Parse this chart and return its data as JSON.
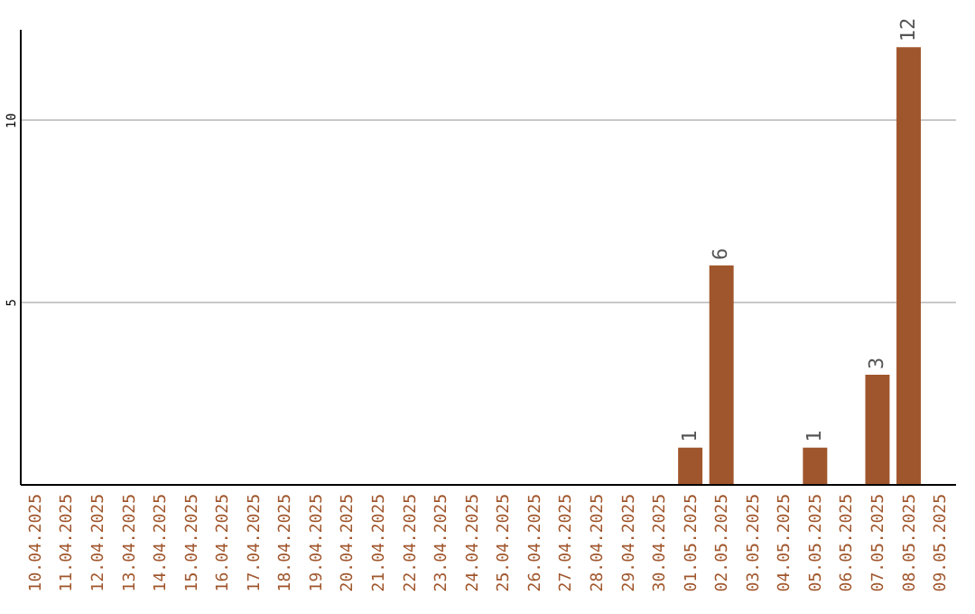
{
  "chart_data": {
    "type": "bar",
    "categories": [
      "10.04.2025",
      "11.04.2025",
      "12.04.2025",
      "13.04.2025",
      "14.04.2025",
      "15.04.2025",
      "16.04.2025",
      "17.04.2025",
      "18.04.2025",
      "19.04.2025",
      "20.04.2025",
      "21.04.2025",
      "22.04.2025",
      "23.04.2025",
      "24.04.2025",
      "25.04.2025",
      "26.04.2025",
      "27.04.2025",
      "28.04.2025",
      "29.04.2025",
      "30.04.2025",
      "01.05.2025",
      "02.05.2025",
      "03.05.2025",
      "04.05.2025",
      "05.05.2025",
      "06.05.2025",
      "07.05.2025",
      "08.05.2025",
      "09.05.2025"
    ],
    "values": [
      0,
      0,
      0,
      0,
      0,
      0,
      0,
      0,
      0,
      0,
      0,
      0,
      0,
      0,
      0,
      0,
      0,
      0,
      0,
      0,
      0,
      1,
      6,
      0,
      0,
      1,
      0,
      3,
      12,
      0
    ],
    "value_labels": [
      null,
      null,
      null,
      null,
      null,
      null,
      null,
      null,
      null,
      null,
      null,
      null,
      null,
      null,
      null,
      null,
      null,
      null,
      null,
      null,
      null,
      "1",
      "6",
      null,
      null,
      "1",
      null,
      "3",
      "12",
      null
    ],
    "color": "#a0562c",
    "ylim": [
      0,
      12.5
    ],
    "yticks": [
      5,
      10
    ],
    "grid": "y"
  }
}
